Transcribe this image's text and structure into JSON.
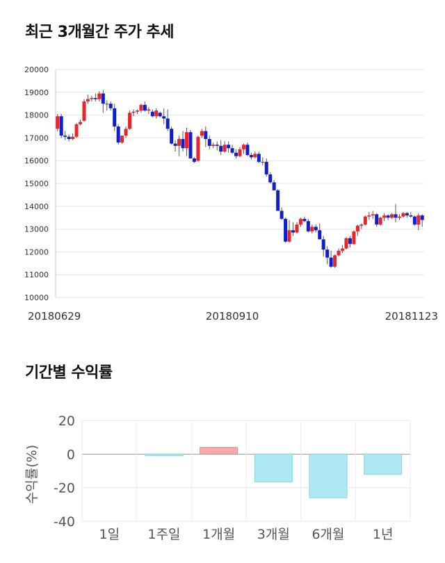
{
  "sections": {
    "stock_title": "최근 3개월간 주가 추세",
    "returns_title": "기간별 수익률"
  },
  "colors": {
    "up": "#e8252a",
    "down": "#1020c8",
    "positive_bar": "#f9a8ae",
    "negative_bar": "#aee8f2"
  },
  "chart_data": [
    {
      "type": "candlestick",
      "title": "최근 3개월간 주가 추세",
      "ylim": [
        10000,
        20000
      ],
      "yticks": [
        10000,
        11000,
        12000,
        13000,
        14000,
        15000,
        16000,
        17000,
        18000,
        19000,
        20000
      ],
      "xtick_labels": [
        {
          "index": 0,
          "label": "20180629"
        },
        {
          "index": 46,
          "label": "20180910"
        },
        {
          "index": 94,
          "label": "20181123"
        }
      ],
      "ohlc": [
        [
          17400,
          18050,
          17300,
          17950
        ],
        [
          17950,
          18050,
          17000,
          17100
        ],
        [
          17100,
          17300,
          16900,
          17050
        ],
        [
          17050,
          17150,
          16850,
          16950
        ],
        [
          16950,
          17200,
          16900,
          17050
        ],
        [
          17050,
          17650,
          17000,
          17600
        ],
        [
          17600,
          17800,
          17550,
          17700
        ],
        [
          17750,
          18700,
          17700,
          18600
        ],
        [
          18600,
          18900,
          18500,
          18700
        ],
        [
          18700,
          18850,
          18600,
          18750
        ],
        [
          18750,
          18950,
          18600,
          18700
        ],
        [
          18700,
          19050,
          18600,
          18950
        ],
        [
          18950,
          19100,
          18100,
          18500
        ],
        [
          18500,
          18650,
          18200,
          18500
        ],
        [
          18500,
          18600,
          18200,
          18300
        ],
        [
          18300,
          18500,
          17300,
          17500
        ],
        [
          17500,
          17600,
          16700,
          16800
        ],
        [
          16800,
          17100,
          16750,
          17100
        ],
        [
          17100,
          17500,
          17000,
          17400
        ],
        [
          17400,
          18200,
          17350,
          18100
        ],
        [
          18100,
          18250,
          17950,
          18150
        ],
        [
          18150,
          18250,
          18050,
          18200
        ],
        [
          18200,
          18500,
          18100,
          18450
        ],
        [
          18450,
          18600,
          18150,
          18200
        ],
        [
          18200,
          18350,
          18050,
          18250
        ],
        [
          18150,
          18250,
          17900,
          17950
        ],
        [
          17950,
          18300,
          17850,
          18200
        ],
        [
          18100,
          18150,
          17900,
          17950
        ],
        [
          17950,
          18300,
          17600,
          17850
        ],
        [
          17850,
          18250,
          17300,
          17400
        ],
        [
          17400,
          17500,
          16700,
          16750
        ],
        [
          16750,
          16900,
          16400,
          16650
        ],
        [
          16650,
          17100,
          16200,
          16950
        ],
        [
          16950,
          17300,
          16400,
          16550
        ],
        [
          16550,
          17450,
          16200,
          17250
        ],
        [
          17250,
          17350,
          16100,
          16100
        ],
        [
          16100,
          16150,
          15900,
          15950
        ],
        [
          16000,
          17100,
          15950,
          17050
        ],
        [
          17100,
          17400,
          17000,
          17300
        ],
        [
          17300,
          17500,
          16600,
          16950
        ],
        [
          16950,
          17100,
          16500,
          16650
        ],
        [
          16650,
          16800,
          16550,
          16700
        ],
        [
          16700,
          16850,
          16450,
          16650
        ],
        [
          16650,
          16900,
          16250,
          16400
        ],
        [
          16400,
          16850,
          16350,
          16700
        ],
        [
          16700,
          16850,
          16350,
          16550
        ],
        [
          16550,
          16700,
          16300,
          16350
        ],
        [
          16350,
          16500,
          16100,
          16200
        ],
        [
          16200,
          16600,
          16150,
          16500
        ],
        [
          16500,
          16750,
          16300,
          16700
        ],
        [
          16700,
          16800,
          16200,
          16250
        ],
        [
          16250,
          16350,
          16050,
          16150
        ],
        [
          16150,
          16400,
          16100,
          16300
        ],
        [
          16300,
          16400,
          15900,
          15950
        ],
        [
          15950,
          16150,
          15800,
          15950
        ],
        [
          15950,
          16100,
          15300,
          15400
        ],
        [
          15400,
          15500,
          15000,
          15050
        ],
        [
          15050,
          15150,
          14700,
          14700
        ],
        [
          14700,
          14750,
          13800,
          13800
        ],
        [
          13800,
          13950,
          13400,
          13450
        ],
        [
          13450,
          13500,
          12400,
          12450
        ],
        [
          12450,
          13400,
          12400,
          12950
        ],
        [
          12950,
          13300,
          12700,
          12850
        ],
        [
          12850,
          13300,
          12800,
          13200
        ],
        [
          13200,
          13500,
          13100,
          13450
        ],
        [
          13450,
          13550,
          13300,
          13350
        ],
        [
          13350,
          13450,
          12850,
          12900
        ],
        [
          12900,
          13200,
          12800,
          13100
        ],
        [
          13100,
          13200,
          12850,
          12950
        ],
        [
          12950,
          13250,
          12600,
          12550
        ],
        [
          12550,
          12700,
          11800,
          12100
        ],
        [
          12100,
          12250,
          11450,
          11750
        ],
        [
          11750,
          12050,
          11300,
          11350
        ],
        [
          11350,
          11900,
          11300,
          11850
        ],
        [
          11850,
          12150,
          11800,
          12050
        ],
        [
          12050,
          12300,
          11950,
          12150
        ],
        [
          12150,
          12650,
          12100,
          12600
        ],
        [
          12600,
          12700,
          12200,
          12350
        ],
        [
          12350,
          12950,
          12300,
          12900
        ],
        [
          12900,
          13200,
          12700,
          13150
        ],
        [
          13150,
          13250,
          13000,
          13200
        ],
        [
          13200,
          13600,
          13150,
          13550
        ],
        [
          13550,
          13750,
          13400,
          13600
        ],
        [
          13600,
          13800,
          13450,
          13650
        ],
        [
          13650,
          13700,
          13100,
          13200
        ],
        [
          13200,
          13550,
          13150,
          13500
        ],
        [
          13500,
          13700,
          13350,
          13600
        ],
        [
          13600,
          13650,
          13400,
          13500
        ],
        [
          13500,
          13700,
          13450,
          13650
        ],
        [
          13650,
          14100,
          13300,
          13500
        ],
        [
          13500,
          13650,
          13400,
          13550
        ],
        [
          13550,
          13750,
          13500,
          13700
        ],
        [
          13700,
          13750,
          13500,
          13600
        ],
        [
          13600,
          13750,
          13500,
          13550
        ],
        [
          13550,
          13600,
          13150,
          13200
        ],
        [
          13200,
          13700,
          12950,
          13600
        ],
        [
          13600,
          13650,
          13100,
          13400
        ]
      ]
    },
    {
      "type": "bar",
      "title": "기간별 수익률",
      "ylabel": "수익률(%)",
      "ylim": [
        -40,
        20
      ],
      "yticks": [
        20,
        0,
        -20,
        -40
      ],
      "categories": [
        "1일",
        "1주일",
        "1개월",
        "3개월",
        "6개월",
        "1년"
      ],
      "values": [
        0.0,
        -1.0,
        4.0,
        -16.5,
        -26.0,
        -12.0
      ]
    }
  ]
}
